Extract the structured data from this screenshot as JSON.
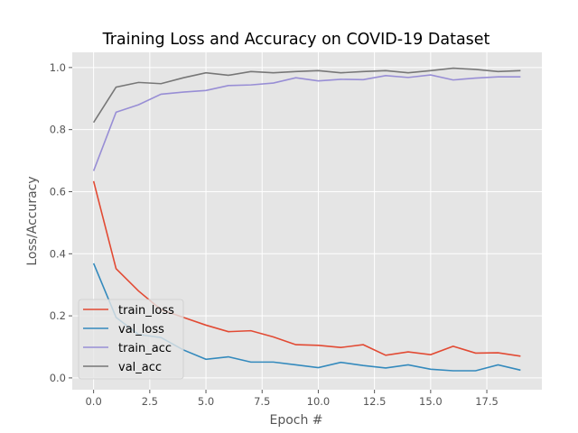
{
  "chart_data": {
    "type": "line",
    "title": "Training Loss and Accuracy on COVID-19 Dataset",
    "xlabel": "Epoch #",
    "ylabel": "Loss/Accuracy",
    "xlim": [
      -0.95,
      19.95
    ],
    "ylim": [
      -0.038,
      1.049
    ],
    "xticks": [
      "0.0",
      "2.5",
      "5.0",
      "7.5",
      "10.0",
      "12.5",
      "15.0",
      "17.5"
    ],
    "xtick_values": [
      0,
      2.5,
      5,
      7.5,
      10,
      12.5,
      15,
      17.5
    ],
    "yticks": [
      "0.0",
      "0.2",
      "0.4",
      "0.6",
      "0.8",
      "1.0"
    ],
    "ytick_values": [
      0,
      0.2,
      0.4,
      0.6,
      0.8,
      1.0
    ],
    "grid": true,
    "legend_position": "lower-left",
    "x": [
      0,
      1,
      2,
      3,
      4,
      5,
      6,
      7,
      8,
      9,
      10,
      11,
      12,
      13,
      14,
      15,
      16,
      17,
      18,
      19
    ],
    "series": [
      {
        "name": "train_loss",
        "color": "#E24A33",
        "values": [
          0.634,
          0.352,
          0.28,
          0.22,
          0.195,
          0.17,
          0.149,
          0.152,
          0.132,
          0.107,
          0.105,
          0.098,
          0.107,
          0.073,
          0.084,
          0.075,
          0.102,
          0.08,
          0.081,
          0.07
        ]
      },
      {
        "name": "val_loss",
        "color": "#348ABD",
        "values": [
          0.369,
          0.195,
          0.14,
          0.13,
          0.09,
          0.06,
          0.068,
          0.051,
          0.051,
          0.042,
          0.033,
          0.05,
          0.04,
          0.032,
          0.042,
          0.028,
          0.023,
          0.023,
          0.042,
          0.025
        ]
      },
      {
        "name": "train_acc",
        "color": "#988ED5",
        "values": [
          0.667,
          0.856,
          0.88,
          0.914,
          0.921,
          0.926,
          0.942,
          0.944,
          0.95,
          0.967,
          0.957,
          0.962,
          0.961,
          0.974,
          0.968,
          0.976,
          0.96,
          0.966,
          0.97,
          0.97
        ]
      },
      {
        "name": "val_acc",
        "color": "#777777",
        "values": [
          0.823,
          0.937,
          0.952,
          0.948,
          0.967,
          0.983,
          0.975,
          0.987,
          0.983,
          0.987,
          0.99,
          0.983,
          0.987,
          0.99,
          0.983,
          0.99,
          0.998,
          0.994,
          0.987,
          0.99
        ]
      }
    ]
  }
}
